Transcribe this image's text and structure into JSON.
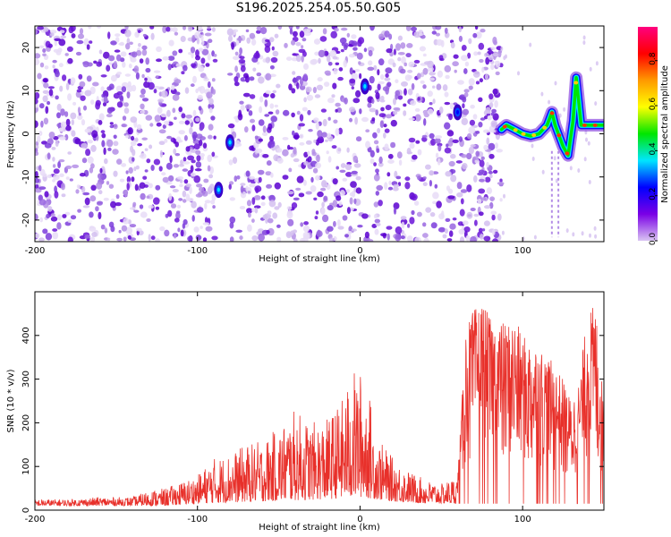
{
  "title": "S196.2025.254.05.50.G05",
  "chart_data": [
    {
      "type": "heatmap",
      "xlabel": "Height of straight line (km)",
      "ylabel": "Frequency (Hz)",
      "xlim": [
        -200,
        150
      ],
      "ylim": [
        -25,
        25
      ],
      "xticks": [
        -200,
        -100,
        0,
        100
      ],
      "yticks": [
        -20,
        -10,
        0,
        10,
        20
      ],
      "colorbar": {
        "label": "Normalized spectral amplitude",
        "range": [
          0,
          0.95
        ],
        "ticks": [
          "0.0",
          "0.2",
          "0.4",
          "0.6",
          "0.8"
        ],
        "colors": [
          "#d9c4f2",
          "#7a00e6",
          "#0000ff",
          "#00e6ff",
          "#00e600",
          "#ffff00",
          "#ff9900",
          "#ff0000",
          "#ff007f"
        ]
      },
      "noise_extent_km": [
        -200,
        87
      ],
      "blank_gaps_km": [
        [
          -89,
          -80
        ],
        [
          -49,
          -47
        ],
        [
          1,
          3
        ],
        [
          59,
          61
        ]
      ],
      "ridge": {
        "x": [
          87,
          90,
          95,
          100,
          105,
          110,
          115,
          118,
          120,
          122,
          125,
          128,
          131,
          133,
          136,
          140,
          145,
          150
        ],
        "y": [
          1,
          2,
          1,
          0,
          -0.5,
          0,
          2,
          5,
          2,
          0,
          -3,
          -5,
          3,
          13,
          2,
          2,
          2,
          2
        ]
      },
      "hotspots": [
        {
          "x": -87,
          "y": -13,
          "v": 0.35
        },
        {
          "x": -80,
          "y": -2,
          "v": 0.3
        },
        {
          "x": 3,
          "y": 11,
          "v": 0.3
        },
        {
          "x": 60,
          "y": 5,
          "v": 0.28
        }
      ]
    },
    {
      "type": "line",
      "xlabel": "Height of straight line (km)",
      "ylabel": "SNR (10 * v/v)",
      "xlim": [
        -200,
        150
      ],
      "ylim": [
        0,
        500
      ],
      "xticks": [
        -200,
        -100,
        0,
        100
      ],
      "yticks": [
        0,
        100,
        200,
        300,
        400
      ],
      "color": "#e8302a",
      "envelope": {
        "x": [
          -200,
          -180,
          -160,
          -140,
          -130,
          -120,
          -100,
          -90,
          -80,
          -70,
          -60,
          -50,
          -40,
          -30,
          -20,
          -10,
          -5,
          0,
          5,
          10,
          20,
          30,
          40,
          50,
          60,
          62,
          65,
          70,
          75,
          80,
          90,
          95,
          100,
          110,
          120,
          125,
          130,
          135,
          140,
          145,
          150
        ],
        "y": [
          25,
          25,
          30,
          30,
          45,
          50,
          80,
          120,
          130,
          150,
          160,
          190,
          230,
          200,
          210,
          260,
          320,
          320,
          280,
          170,
          120,
          90,
          70,
          60,
          80,
          200,
          420,
          460,
          480,
          440,
          430,
          440,
          400,
          380,
          330,
          300,
          250,
          300,
          460,
          470,
          240
        ]
      },
      "floor": {
        "x": [
          -200,
          -120,
          -100,
          -60,
          -20,
          0,
          20,
          40,
          60,
          65,
          100,
          150
        ],
        "y": [
          10,
          10,
          15,
          20,
          25,
          30,
          20,
          15,
          15,
          15,
          15,
          15
        ]
      }
    }
  ]
}
